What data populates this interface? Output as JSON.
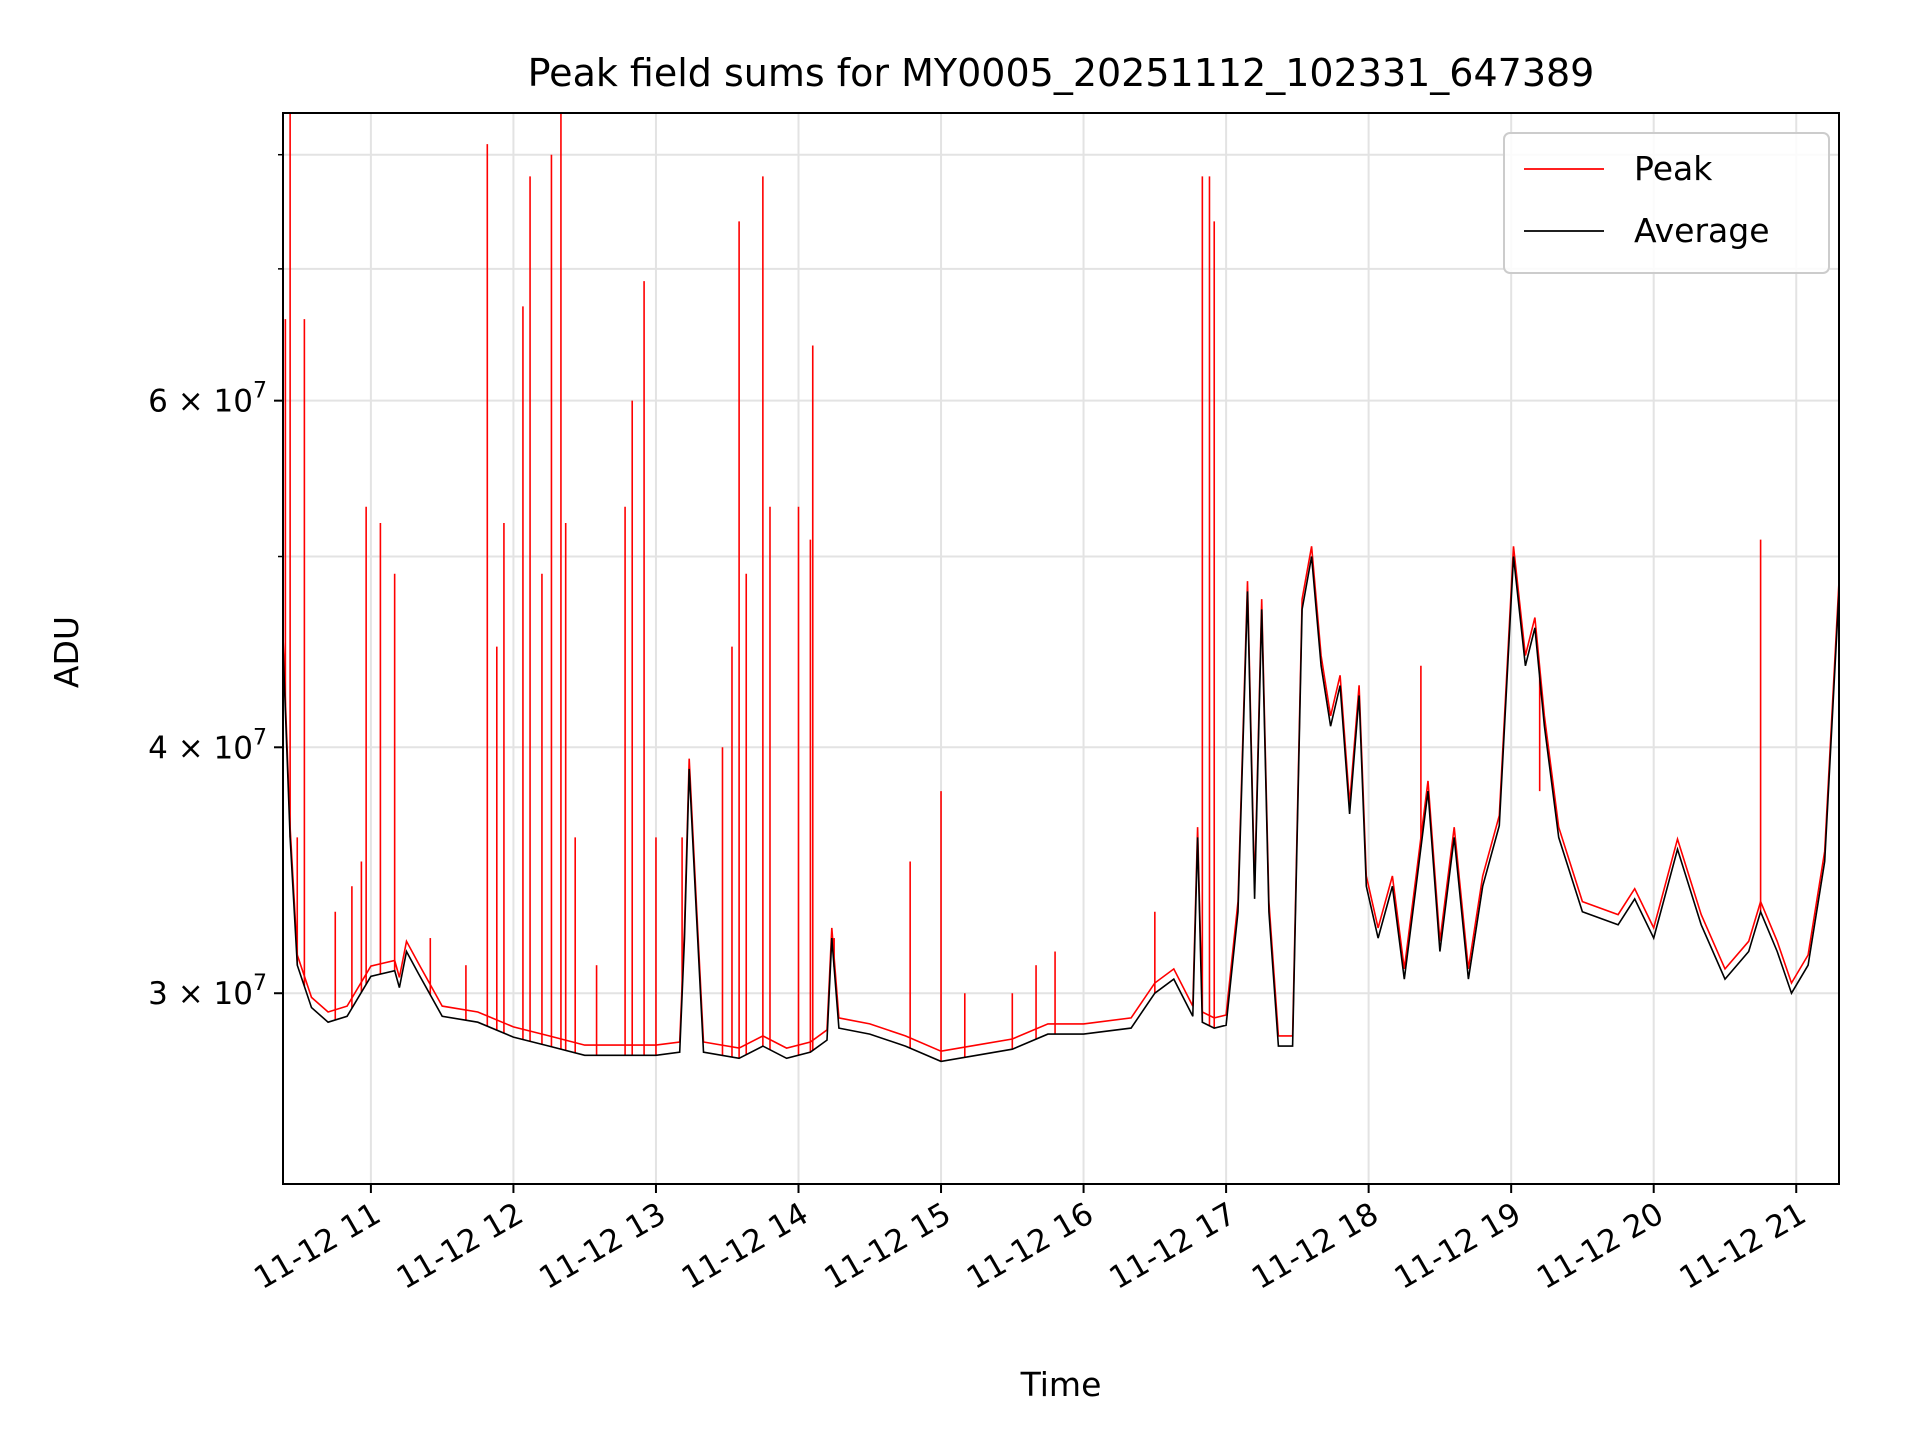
{
  "chart_data": {
    "type": "line",
    "title": "Peak field sums for MY0005_20251112_102331_647389",
    "xlabel": "Time",
    "ylabel": "ADU",
    "x_axis": {
      "type": "time",
      "ticks": [
        "2025-11-12 11:00",
        "2025-11-12 12:00",
        "2025-11-12 13:00",
        "2025-11-12 14:00",
        "2025-11-12 15:00",
        "2025-11-12 16:00",
        "2025-11-12 17:00",
        "2025-11-12 18:00",
        "2025-11-12 19:00",
        "2025-11-12 20:00",
        "2025-11-12 21:00"
      ],
      "tick_labels": [
        "11-12 11",
        "11-12 12",
        "11-12 13",
        "11-12 14",
        "11-12 15",
        "11-12 16",
        "11-12 17",
        "11-12 18",
        "11-12 19",
        "11-12 20",
        "11-12 21"
      ],
      "xlim": [
        "2025-11-12 10:23",
        "2025-11-12 21:18"
      ]
    },
    "y_axis": {
      "scale": "log",
      "ylim": [
        24000000,
        84000000
      ],
      "labeled_ticks": [
        {
          "value": 30000000,
          "mantissa": "3",
          "exponent": "7"
        },
        {
          "value": 40000000,
          "mantissa": "4",
          "exponent": "7"
        },
        {
          "value": 60000000,
          "mantissa": "6",
          "exponent": "7"
        }
      ],
      "minor_ticks": [
        50000000,
        70000000,
        80000000
      ]
    },
    "grid": true,
    "legend": {
      "placement": "upper right",
      "entries": [
        {
          "label": "Peak",
          "color": "#ff0000"
        },
        {
          "label": "Average",
          "color": "#000000"
        }
      ]
    },
    "series": [
      {
        "name": "Average",
        "color": "#000000",
        "points": [
          [
            "2025-11-12 10:23",
            45000000
          ],
          [
            "2025-11-12 10:26",
            36000000
          ],
          [
            "2025-11-12 10:29",
            31000000
          ],
          [
            "2025-11-12 10:35",
            29500000
          ],
          [
            "2025-11-12 10:42",
            29000000
          ],
          [
            "2025-11-12 10:50",
            29200000
          ],
          [
            "2025-11-12 11:00",
            30600000
          ],
          [
            "2025-11-12 11:10",
            30800000
          ],
          [
            "2025-11-12 11:12",
            30200000
          ],
          [
            "2025-11-12 11:15",
            31500000
          ],
          [
            "2025-11-12 11:20",
            30700000
          ],
          [
            "2025-11-12 11:30",
            29200000
          ],
          [
            "2025-11-12 11:45",
            29000000
          ],
          [
            "2025-11-12 12:00",
            28500000
          ],
          [
            "2025-11-12 12:15",
            28200000
          ],
          [
            "2025-11-12 12:30",
            27900000
          ],
          [
            "2025-11-12 12:45",
            27900000
          ],
          [
            "2025-11-12 13:00",
            27900000
          ],
          [
            "2025-11-12 13:10",
            28000000
          ],
          [
            "2025-11-12 13:12",
            32000000
          ],
          [
            "2025-11-12 13:14",
            39000000
          ],
          [
            "2025-11-12 13:17",
            33000000
          ],
          [
            "2025-11-12 13:20",
            28000000
          ],
          [
            "2025-11-12 13:35",
            27800000
          ],
          [
            "2025-11-12 13:45",
            28200000
          ],
          [
            "2025-11-12 13:55",
            27800000
          ],
          [
            "2025-11-12 14:05",
            28000000
          ],
          [
            "2025-11-12 14:12",
            28400000
          ],
          [
            "2025-11-12 14:14",
            32000000
          ],
          [
            "2025-11-12 14:17",
            28800000
          ],
          [
            "2025-11-12 14:30",
            28600000
          ],
          [
            "2025-11-12 14:45",
            28200000
          ],
          [
            "2025-11-12 15:00",
            27700000
          ],
          [
            "2025-11-12 15:15",
            27900000
          ],
          [
            "2025-11-12 15:30",
            28100000
          ],
          [
            "2025-11-12 15:45",
            28600000
          ],
          [
            "2025-11-12 16:00",
            28600000
          ],
          [
            "2025-11-12 16:20",
            28800000
          ],
          [
            "2025-11-12 16:30",
            30000000
          ],
          [
            "2025-11-12 16:38",
            30500000
          ],
          [
            "2025-11-12 16:46",
            29200000
          ],
          [
            "2025-11-12 16:48",
            36000000
          ],
          [
            "2025-11-12 16:50",
            29000000
          ],
          [
            "2025-11-12 16:55",
            28800000
          ],
          [
            "2025-11-12 17:00",
            28900000
          ],
          [
            "2025-11-12 17:05",
            33000000
          ],
          [
            "2025-11-12 17:09",
            48000000
          ],
          [
            "2025-11-12 17:12",
            33500000
          ],
          [
            "2025-11-12 17:15",
            47000000
          ],
          [
            "2025-11-12 17:18",
            33000000
          ],
          [
            "2025-11-12 17:22",
            28200000
          ],
          [
            "2025-11-12 17:28",
            28200000
          ],
          [
            "2025-11-12 17:32",
            47000000
          ],
          [
            "2025-11-12 17:36",
            50000000
          ],
          [
            "2025-11-12 17:40",
            44000000
          ],
          [
            "2025-11-12 17:44",
            41000000
          ],
          [
            "2025-11-12 17:48",
            43000000
          ],
          [
            "2025-11-12 17:52",
            37000000
          ],
          [
            "2025-11-12 17:56",
            42500000
          ],
          [
            "2025-11-12 17:59",
            34000000
          ],
          [
            "2025-11-12 18:04",
            32000000
          ],
          [
            "2025-11-12 18:10",
            34000000
          ],
          [
            "2025-11-12 18:15",
            30500000
          ],
          [
            "2025-11-12 18:20",
            34000000
          ],
          [
            "2025-11-12 18:25",
            38000000
          ],
          [
            "2025-11-12 18:30",
            31500000
          ],
          [
            "2025-11-12 18:36",
            36000000
          ],
          [
            "2025-11-12 18:42",
            30500000
          ],
          [
            "2025-11-12 18:48",
            34000000
          ],
          [
            "2025-11-12 18:55",
            36500000
          ],
          [
            "2025-11-12 19:01",
            50000000
          ],
          [
            "2025-11-12 19:06",
            44000000
          ],
          [
            "2025-11-12 19:10",
            46000000
          ],
          [
            "2025-11-12 19:14",
            41000000
          ],
          [
            "2025-11-12 19:20",
            36000000
          ],
          [
            "2025-11-12 19:30",
            33000000
          ],
          [
            "2025-11-12 19:45",
            32500000
          ],
          [
            "2025-11-12 19:52",
            33500000
          ],
          [
            "2025-11-12 20:00",
            32000000
          ],
          [
            "2025-11-12 20:10",
            35500000
          ],
          [
            "2025-11-12 20:20",
            32500000
          ],
          [
            "2025-11-12 20:30",
            30500000
          ],
          [
            "2025-11-12 20:40",
            31500000
          ],
          [
            "2025-11-12 20:45",
            33000000
          ],
          [
            "2025-11-12 20:52",
            31500000
          ],
          [
            "2025-11-12 20:58",
            30000000
          ],
          [
            "2025-11-12 21:05",
            31000000
          ],
          [
            "2025-11-12 21:12",
            35000000
          ],
          [
            "2025-11-12 21:18",
            48000000
          ]
        ]
      },
      {
        "name": "Peak",
        "color": "#ff0000",
        "spikes": [
          [
            "2025-11-12 10:24",
            66000000
          ],
          [
            "2025-11-12 10:26",
            84000000
          ],
          [
            "2025-11-12 10:29",
            36000000
          ],
          [
            "2025-11-12 10:32",
            66000000
          ],
          [
            "2025-11-12 10:45",
            33000000
          ],
          [
            "2025-11-12 10:52",
            34000000
          ],
          [
            "2025-11-12 10:56",
            35000000
          ],
          [
            "2025-11-12 10:58",
            53000000
          ],
          [
            "2025-11-12 11:04",
            52000000
          ],
          [
            "2025-11-12 11:10",
            49000000
          ],
          [
            "2025-11-12 11:25",
            32000000
          ],
          [
            "2025-11-12 11:40",
            31000000
          ],
          [
            "2025-11-12 11:49",
            81000000
          ],
          [
            "2025-11-12 11:53",
            45000000
          ],
          [
            "2025-11-12 11:56",
            52000000
          ],
          [
            "2025-11-12 12:04",
            67000000
          ],
          [
            "2025-11-12 12:07",
            78000000
          ],
          [
            "2025-11-12 12:12",
            49000000
          ],
          [
            "2025-11-12 12:16",
            80000000
          ],
          [
            "2025-11-12 12:20",
            86000000
          ],
          [
            "2025-11-12 12:22",
            52000000
          ],
          [
            "2025-11-12 12:26",
            36000000
          ],
          [
            "2025-11-12 12:35",
            31000000
          ],
          [
            "2025-11-12 12:47",
            53000000
          ],
          [
            "2025-11-12 12:50",
            60000000
          ],
          [
            "2025-11-12 12:55",
            69000000
          ],
          [
            "2025-11-12 13:00",
            36000000
          ],
          [
            "2025-11-12 13:11",
            36000000
          ],
          [
            "2025-11-12 13:14",
            39000000
          ],
          [
            "2025-11-12 13:28",
            40000000
          ],
          [
            "2025-11-12 13:32",
            45000000
          ],
          [
            "2025-11-12 13:35",
            74000000
          ],
          [
            "2025-11-12 13:38",
            49000000
          ],
          [
            "2025-11-12 13:45",
            78000000
          ],
          [
            "2025-11-12 13:48",
            53000000
          ],
          [
            "2025-11-12 14:00",
            53000000
          ],
          [
            "2025-11-12 14:05",
            51000000
          ],
          [
            "2025-11-12 14:06",
            64000000
          ],
          [
            "2025-11-12 14:15",
            32000000
          ],
          [
            "2025-11-12 14:47",
            35000000
          ],
          [
            "2025-11-12 15:00",
            38000000
          ],
          [
            "2025-11-12 15:10",
            30000000
          ],
          [
            "2025-11-12 15:30",
            30000000
          ],
          [
            "2025-11-12 15:40",
            31000000
          ],
          [
            "2025-11-12 15:48",
            31500000
          ],
          [
            "2025-11-12 16:30",
            33000000
          ],
          [
            "2025-11-12 16:50",
            78000000
          ],
          [
            "2025-11-12 16:53",
            78000000
          ],
          [
            "2025-11-12 16:55",
            74000000
          ],
          [
            "2025-11-12 18:22",
            44000000
          ],
          [
            "2025-11-12 19:12",
            38000000
          ],
          [
            "2025-11-12 20:45",
            51000000
          ]
        ]
      }
    ]
  }
}
